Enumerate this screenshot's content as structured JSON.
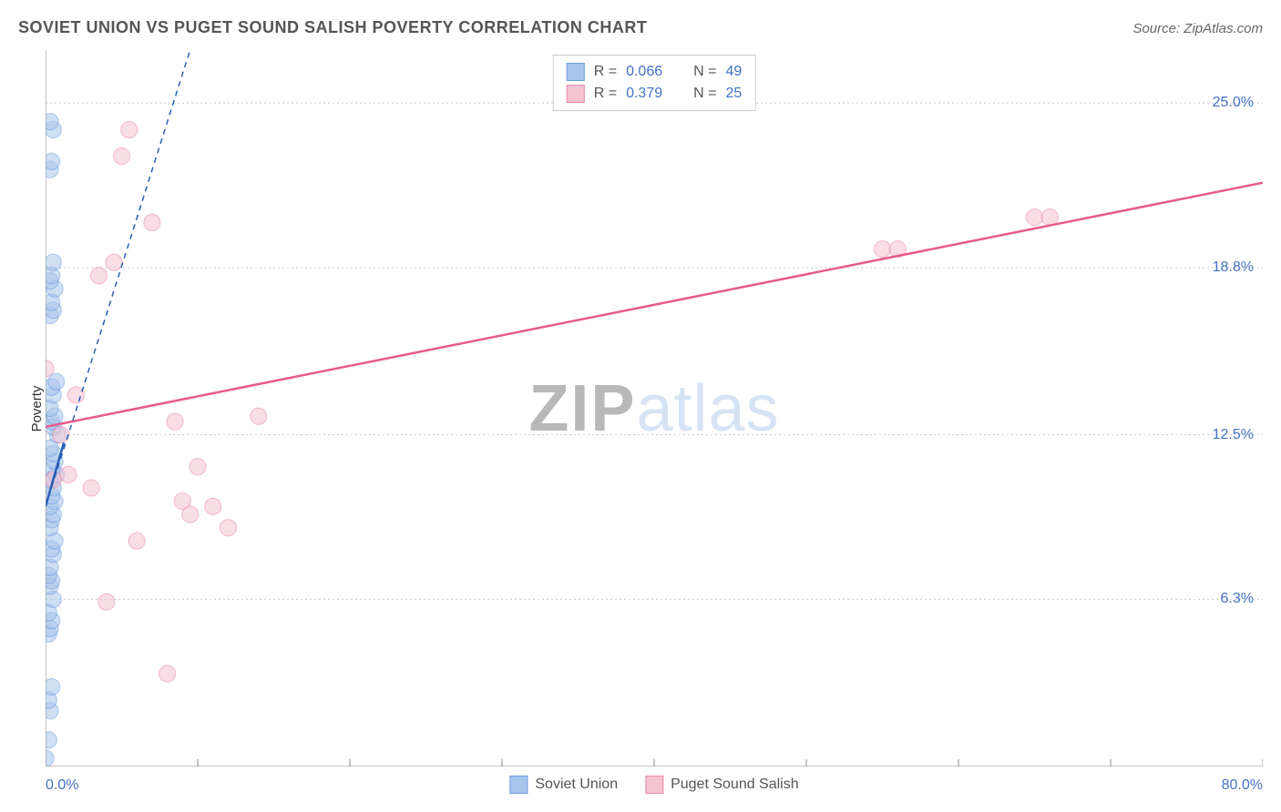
{
  "title": "SOVIET UNION VS PUGET SOUND SALISH POVERTY CORRELATION CHART",
  "source": "Source: ZipAtlas.com",
  "watermark": {
    "part1": "ZIP",
    "part2": "atlas"
  },
  "chart": {
    "type": "scatter",
    "xlim": [
      0,
      80
    ],
    "ylim": [
      0,
      27
    ],
    "x_ticks": [
      0,
      10,
      20,
      30,
      40,
      50,
      60,
      70,
      80
    ],
    "y_grid": [
      6.3,
      12.5,
      18.8,
      25.0
    ],
    "x_labels": [
      {
        "value": 0,
        "text": "0.0%",
        "align": "left"
      },
      {
        "value": 80,
        "text": "80.0%",
        "align": "right"
      }
    ],
    "y_labels": [
      {
        "value": 6.3,
        "text": "6.3%"
      },
      {
        "value": 12.5,
        "text": "12.5%"
      },
      {
        "value": 18.8,
        "text": "18.8%"
      },
      {
        "value": 25.0,
        "text": "25.0%"
      }
    ],
    "y_axis_title": "Poverty",
    "axis_color": "#888888",
    "grid_color": "#cccccc",
    "background_color": "#ffffff",
    "title_color": "#555555",
    "tick_label_color": "#4472c4",
    "marker_radius": 9,
    "marker_opacity": 0.55,
    "series": [
      {
        "name": "Soviet Union",
        "color_fill": "#a8c5ec",
        "color_stroke": "#6d9de0",
        "trend_color": "#2b5fb5",
        "trend_dash": "6,5",
        "trend_solid_segment": [
          [
            0.0,
            9.8
          ],
          [
            1.2,
            12.2
          ]
        ],
        "trend_dashed_segment": [
          [
            0.0,
            9.8
          ],
          [
            9.5,
            27.0
          ]
        ],
        "points": [
          [
            0.0,
            0.3
          ],
          [
            0.2,
            1.0
          ],
          [
            0.3,
            2.1
          ],
          [
            0.2,
            2.5
          ],
          [
            0.4,
            3.0
          ],
          [
            0.2,
            5.0
          ],
          [
            0.3,
            5.2
          ],
          [
            0.4,
            5.5
          ],
          [
            0.2,
            5.8
          ],
          [
            0.5,
            6.3
          ],
          [
            0.3,
            6.8
          ],
          [
            0.4,
            7.0
          ],
          [
            0.2,
            7.2
          ],
          [
            0.3,
            7.5
          ],
          [
            0.5,
            8.0
          ],
          [
            0.4,
            8.2
          ],
          [
            0.6,
            8.5
          ],
          [
            0.3,
            9.0
          ],
          [
            0.4,
            9.3
          ],
          [
            0.5,
            9.5
          ],
          [
            0.3,
            9.8
          ],
          [
            0.6,
            10.0
          ],
          [
            0.4,
            10.2
          ],
          [
            0.5,
            10.5
          ],
          [
            0.3,
            10.8
          ],
          [
            0.7,
            11.0
          ],
          [
            0.4,
            11.2
          ],
          [
            0.6,
            11.5
          ],
          [
            0.5,
            11.8
          ],
          [
            0.3,
            12.0
          ],
          [
            0.8,
            12.5
          ],
          [
            0.5,
            12.8
          ],
          [
            0.4,
            13.0
          ],
          [
            0.6,
            13.2
          ],
          [
            0.3,
            13.5
          ],
          [
            0.5,
            14.0
          ],
          [
            0.4,
            14.3
          ],
          [
            0.7,
            14.5
          ],
          [
            0.3,
            17.0
          ],
          [
            0.5,
            17.2
          ],
          [
            0.4,
            17.5
          ],
          [
            0.6,
            18.0
          ],
          [
            0.3,
            18.3
          ],
          [
            0.4,
            18.5
          ],
          [
            0.5,
            19.0
          ],
          [
            0.3,
            22.5
          ],
          [
            0.4,
            22.8
          ],
          [
            0.5,
            24.0
          ],
          [
            0.3,
            24.3
          ]
        ]
      },
      {
        "name": "Puget Sound Salish",
        "color_fill": "#f5c4d2",
        "color_stroke": "#eb8aa8",
        "trend_color": "#e85a8b",
        "trend_dash": "none",
        "trend_solid_segment": [
          [
            0.0,
            12.8
          ],
          [
            80.0,
            22.0
          ]
        ],
        "points": [
          [
            0.0,
            15.0
          ],
          [
            0.5,
            10.8
          ],
          [
            1.0,
            12.5
          ],
          [
            1.5,
            11.0
          ],
          [
            3.5,
            18.5
          ],
          [
            4.0,
            6.2
          ],
          [
            4.5,
            19.0
          ],
          [
            5.0,
            23.0
          ],
          [
            5.5,
            24.0
          ],
          [
            6.0,
            8.5
          ],
          [
            7.0,
            20.5
          ],
          [
            8.0,
            3.5
          ],
          [
            8.5,
            13.0
          ],
          [
            9.0,
            10.0
          ],
          [
            9.5,
            9.5
          ],
          [
            10.0,
            11.3
          ],
          [
            11.0,
            9.8
          ],
          [
            12.0,
            9.0
          ],
          [
            14.0,
            13.2
          ],
          [
            55.0,
            19.5
          ],
          [
            56.0,
            19.5
          ],
          [
            65.0,
            20.7
          ],
          [
            66.0,
            20.7
          ],
          [
            2.0,
            14.0
          ],
          [
            3.0,
            10.5
          ]
        ]
      }
    ],
    "legend_top": [
      {
        "swatch_fill": "#a8c5ec",
        "swatch_stroke": "#6d9de0",
        "r_label": "R =",
        "r_value": "0.066",
        "n_label": "N =",
        "n_value": "49"
      },
      {
        "swatch_fill": "#f5c4d2",
        "swatch_stroke": "#eb8aa8",
        "r_label": "R =",
        "r_value": "0.379",
        "n_label": "N =",
        "n_value": "25"
      }
    ],
    "legend_bottom": [
      {
        "swatch_fill": "#a8c5ec",
        "swatch_stroke": "#6d9de0",
        "label": "Soviet Union"
      },
      {
        "swatch_fill": "#f5c4d2",
        "swatch_stroke": "#eb8aa8",
        "label": "Puget Sound Salish"
      }
    ]
  }
}
